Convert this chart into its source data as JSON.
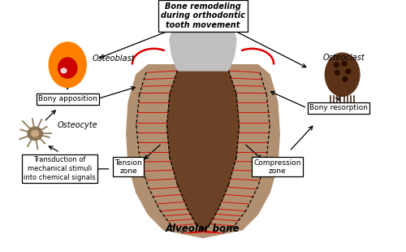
{
  "title": "Bone remodeling\nduring orthodontic\ntooth movement",
  "bg_color": "#ffffff",
  "osteoblast_label": "Osteoblast",
  "osteoclast_label": "Osteoclast",
  "osteocyte_label": "Osteocyte",
  "bony_apposition_label": "Bony apposition",
  "bony_resorption_label": "Bony resorption",
  "transduction_label": "Transduction of\nmechanical stimuli\ninto chemical signals",
  "tension_label": "Tension\nzone",
  "compression_label": "Compression\nzone",
  "alveolar_label": "Alveolar bone",
  "osteoblast_outer": "#FF8000",
  "osteoblast_inner": "#cc0000",
  "osteoclast_color": "#5c3318",
  "osteocyte_color": "#8B7355",
  "osteocyte_nucleus": "#c8a882",
  "crown_color": "#c0c0c0",
  "root_color": "#6b4226",
  "bone_color": "#b09070",
  "bone_dark": "#8a6a50",
  "pdl_border_color": "#222222",
  "red_fiber_color": "#dd0000",
  "arrow_color": "#000000",
  "box_edge": "#000000",
  "box_face": "#ffffff"
}
